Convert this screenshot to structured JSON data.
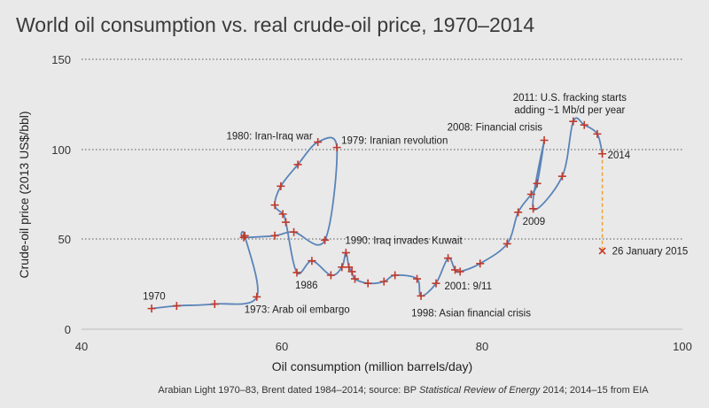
{
  "chart_data": {
    "type": "line",
    "title": "World oil consumption vs. real crude-oil price, 1970–2014",
    "xlabel": "Oil consumption (million barrels/day)",
    "ylabel": "Crude-oil price (2013 US$/bbl)",
    "xlim": [
      40,
      100
    ],
    "ylim": [
      0,
      150
    ],
    "x_ticks": [
      "40",
      "60",
      "80",
      "100"
    ],
    "y_ticks": [
      "0",
      "50",
      "100",
      "150"
    ],
    "grid": "horizontal dotted at 50, 100, 150",
    "colors": {
      "line": "#5a84b8",
      "marker": "#c0392b",
      "dashed": "#f0a030",
      "background": "#e9e9e9"
    },
    "series": [
      {
        "points": [
          {
            "year": 1970,
            "x": 47.0,
            "y": 11.5
          },
          {
            "year": 1971,
            "x": 49.5,
            "y": 13.0
          },
          {
            "year": 1972,
            "x": 53.3,
            "y": 14.0
          },
          {
            "year": 1973,
            "x": 57.5,
            "y": 18.0
          },
          {
            "year": 1974,
            "x": 56.3,
            "y": 52.0
          },
          {
            "year": 1975,
            "x": 56.2,
            "y": 51.0
          },
          {
            "year": 1976,
            "x": 59.3,
            "y": 52.0
          },
          {
            "year": 1977,
            "x": 61.2,
            "y": 54.0
          },
          {
            "year": 1978,
            "x": 64.3,
            "y": 49.5
          },
          {
            "year": 1979,
            "x": 65.5,
            "y": 101.0
          },
          {
            "year": 1980,
            "x": 63.6,
            "y": 104.0
          },
          {
            "year": 1981,
            "x": 61.6,
            "y": 91.5
          },
          {
            "year": 1982,
            "x": 59.9,
            "y": 79.5
          },
          {
            "year": 1983,
            "x": 59.3,
            "y": 69.0
          },
          {
            "year": 1984,
            "x": 60.1,
            "y": 64.0
          },
          {
            "year": 1985,
            "x": 60.4,
            "y": 59.5
          },
          {
            "year": 1986,
            "x": 61.5,
            "y": 31.5
          },
          {
            "year": 1987,
            "x": 63.0,
            "y": 38.0
          },
          {
            "year": 1988,
            "x": 64.9,
            "y": 30.0
          },
          {
            "year": 1989,
            "x": 66.0,
            "y": 34.5
          },
          {
            "year": 1990,
            "x": 66.4,
            "y": 42.5
          },
          {
            "year": 1991,
            "x": 66.7,
            "y": 34.5
          },
          {
            "year": 1992,
            "x": 67.0,
            "y": 32.0
          },
          {
            "year": 1993,
            "x": 67.3,
            "y": 28.0
          },
          {
            "year": 1994,
            "x": 68.6,
            "y": 25.5
          },
          {
            "year": 1995,
            "x": 70.2,
            "y": 26.5
          },
          {
            "year": 1996,
            "x": 71.3,
            "y": 30.0
          },
          {
            "year": 1997,
            "x": 73.5,
            "y": 28.0
          },
          {
            "year": 1998,
            "x": 73.9,
            "y": 18.5
          },
          {
            "year": 1999,
            "x": 75.4,
            "y": 25.5
          },
          {
            "year": 2000,
            "x": 76.6,
            "y": 39.5
          },
          {
            "year": 2001,
            "x": 77.3,
            "y": 33.0
          },
          {
            "year": 2002,
            "x": 77.8,
            "y": 32.0
          },
          {
            "year": 2003,
            "x": 79.8,
            "y": 36.5
          },
          {
            "year": 2004,
            "x": 82.5,
            "y": 47.5
          },
          {
            "year": 2005,
            "x": 83.6,
            "y": 65.0
          },
          {
            "year": 2006,
            "x": 84.9,
            "y": 75.0
          },
          {
            "year": 2007,
            "x": 85.5,
            "y": 81.0
          },
          {
            "year": 2008,
            "x": 86.2,
            "y": 105.0
          },
          {
            "year": 2009,
            "x": 85.1,
            "y": 67.0
          },
          {
            "year": 2010,
            "x": 88.0,
            "y": 85.0
          },
          {
            "year": 2011,
            "x": 89.1,
            "y": 115.5
          },
          {
            "year": 2012,
            "x": 90.2,
            "y": 113.5
          },
          {
            "year": 2013,
            "x": 91.5,
            "y": 108.5
          },
          {
            "year": 2014,
            "x": 92.0,
            "y": 97.5
          }
        ]
      }
    ],
    "extra_point": {
      "label": "26 January 2015",
      "x": 92.0,
      "y": 43.5
    },
    "annotations": [
      {
        "text": "1970",
        "year": 1970
      },
      {
        "text": "1973: Arab oil embargo",
        "year": 1973
      },
      {
        "text": "1980: Iran-Iraq war",
        "year": 1980
      },
      {
        "text": "1979: Iranian revolution",
        "year": 1979
      },
      {
        "text": "1986",
        "year": 1986
      },
      {
        "text": "1990: Iraq invades Kuwait",
        "year": 1990
      },
      {
        "text": "1998: Asian financial crisis",
        "year": 1998
      },
      {
        "text": "2001: 9/11",
        "year": 2001
      },
      {
        "text": "2008: Financial crisis",
        "year": 2008
      },
      {
        "text": "2009",
        "year": 2009
      },
      {
        "text": "2011: U.S. fracking starts",
        "year": 2011
      },
      {
        "text": "adding ~1 Mb/d per year",
        "year": 2011
      },
      {
        "text": "2014",
        "year": 2014
      }
    ],
    "footer": {
      "prefix": "Arabian Light 1970–83, Brent dated 1984–2014; source: BP ",
      "italic": "Statistical Review of Energy",
      "suffix": " 2014; 2014–15 from EIA"
    }
  }
}
